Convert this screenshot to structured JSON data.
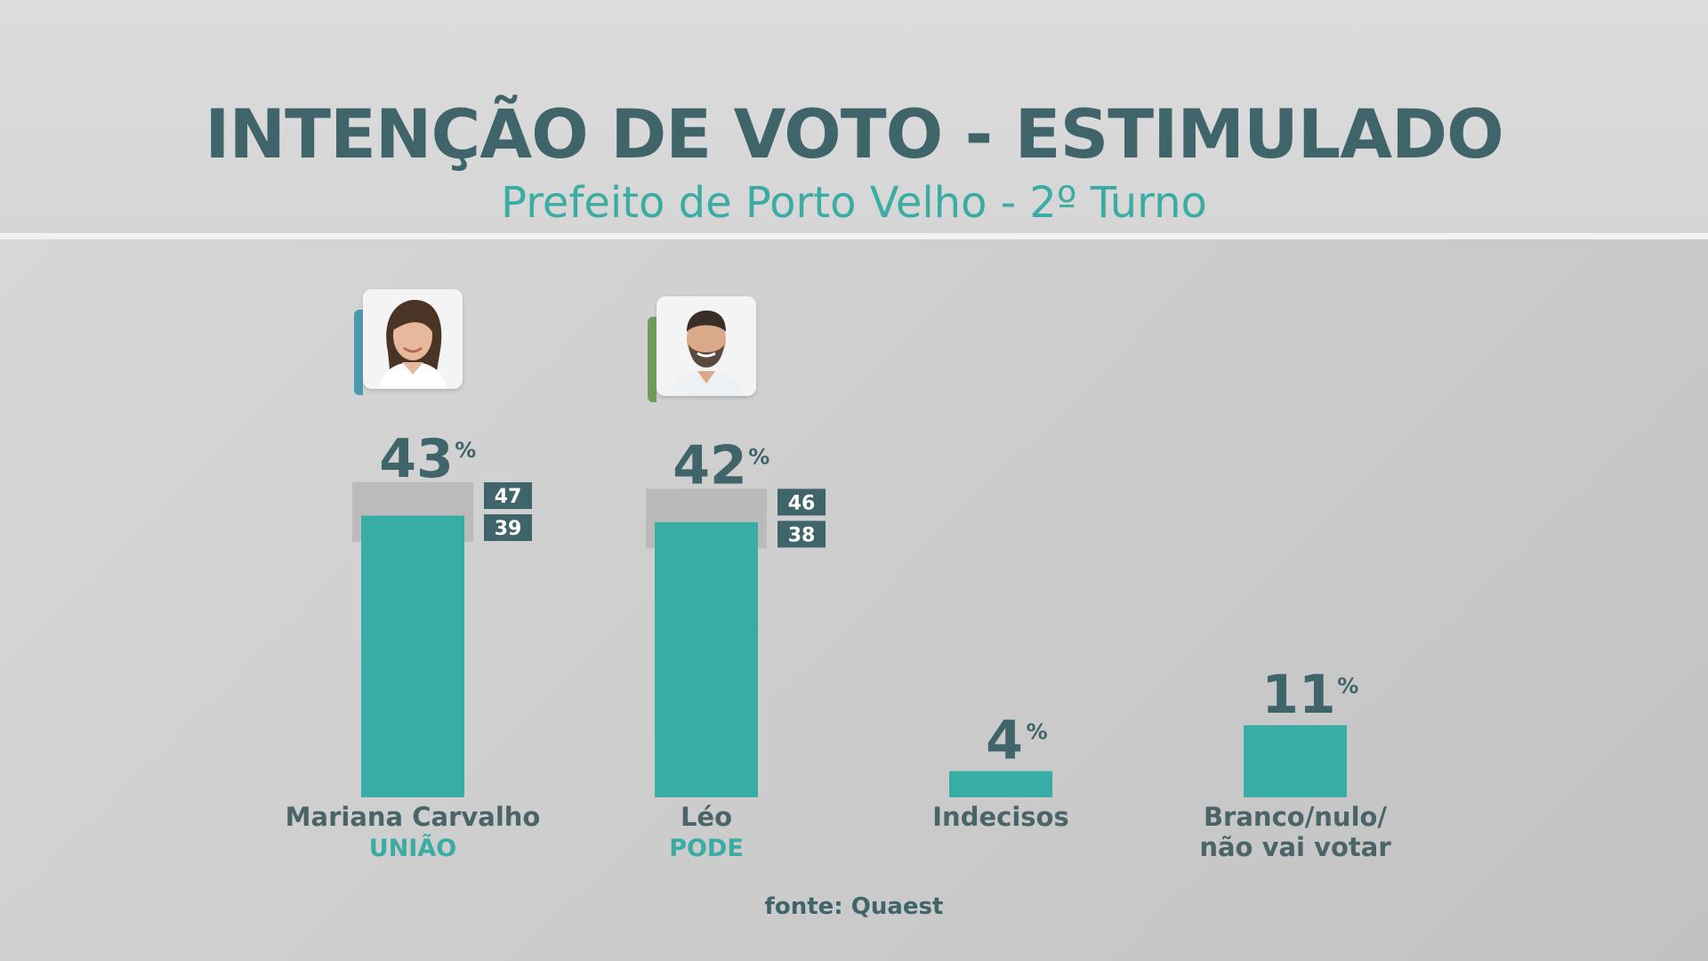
{
  "header": {
    "title": "INTENÇÃO DE VOTO - ESTIMULADO",
    "subtitle": "Prefeito de Porto Velho - 2º Turno"
  },
  "source": "fonte: Quaest",
  "colors": {
    "bar": "#38ada6",
    "title": "#3f6469",
    "accent": "#3aaca3",
    "margin_band": "#b3b3b3",
    "range_box": "#3f6469"
  },
  "chart_data": {
    "type": "bar",
    "title": "INTENÇÃO DE VOTO - ESTIMULADO",
    "subtitle": "Prefeito de Porto Velho - 2º Turno",
    "unit": "%",
    "categories": [
      "Mariana Carvalho",
      "Léo",
      "Indecisos",
      "Branco/nulo/\nnão vai votar"
    ],
    "parties": [
      "UNIÃO",
      "PODE",
      "",
      ""
    ],
    "values": [
      43,
      42,
      4,
      11
    ],
    "ranges": [
      {
        "high": 47,
        "low": 39
      },
      {
        "high": 46,
        "low": 38
      },
      null,
      null
    ],
    "photo_icons": [
      "candidate-photo-mariana-icon",
      "candidate-photo-leo-icon",
      null,
      null
    ],
    "ylim": [
      0,
      47
    ],
    "grid": false,
    "legend": "none"
  }
}
